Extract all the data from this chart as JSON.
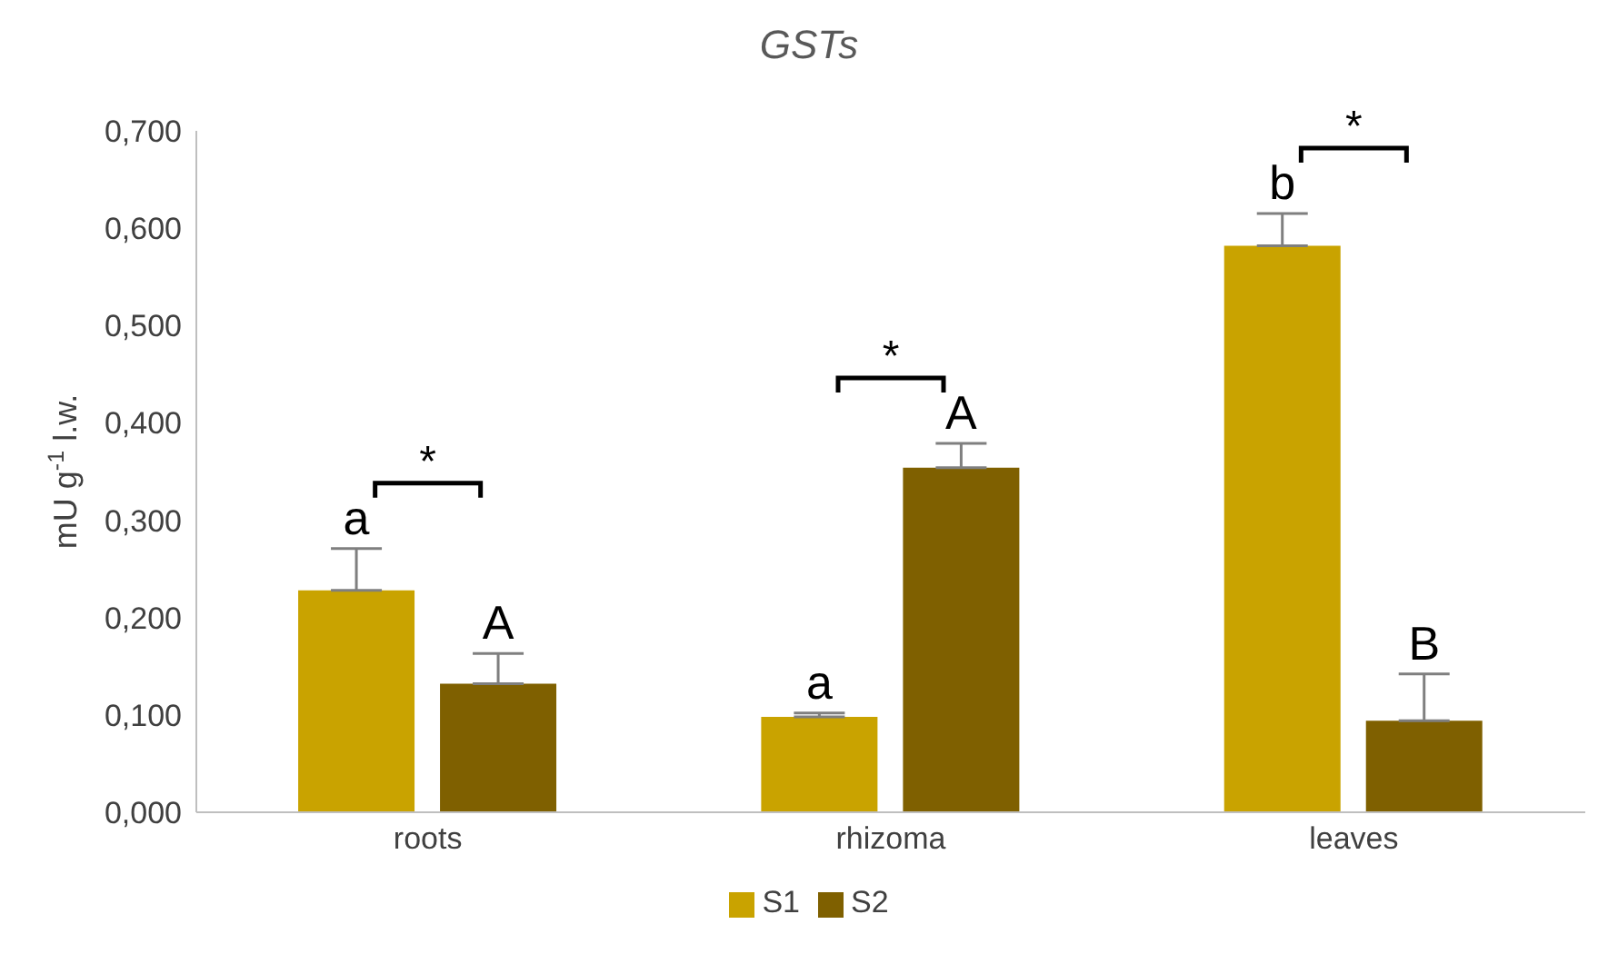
{
  "chart_data": {
    "type": "bar",
    "title": "GSTs",
    "ylabel": "mU g$^{-1}$ l.w.",
    "categories": [
      "roots",
      "rhizoma",
      "leaves"
    ],
    "series": [
      {
        "name": "S1",
        "color": "#c9a300",
        "values": [
          0.228,
          0.098,
          0.582
        ],
        "errors": [
          [
            0.228,
            0.271
          ],
          [
            0.098,
            0.102
          ],
          [
            0.582,
            0.615
          ]
        ]
      },
      {
        "name": "S2",
        "color": "#7f6000",
        "values": [
          0.132,
          0.354,
          0.094
        ],
        "errors": [
          [
            0.132,
            0.163
          ],
          [
            0.354,
            0.379
          ],
          [
            0.094,
            0.142
          ]
        ]
      }
    ],
    "ylim": [
      0,
      0.7
    ],
    "yticks": [
      {
        "value": 0,
        "label": "0,000"
      },
      {
        "value": 0.1,
        "label": "0,100"
      },
      {
        "value": 0.2,
        "label": "0,200"
      },
      {
        "value": 0.3,
        "label": "0,300"
      },
      {
        "value": 0.4,
        "label": "0,400"
      },
      {
        "value": 0.5,
        "label": "0,500"
      },
      {
        "value": 0.6,
        "label": "0,600"
      },
      {
        "value": 0.7,
        "label": "0,700"
      }
    ],
    "grid": false,
    "legend": "bottom",
    "annotations": [
      "a",
      "A",
      "a",
      "A",
      "b",
      "B",
      "*",
      "*",
      "*"
    ]
  }
}
